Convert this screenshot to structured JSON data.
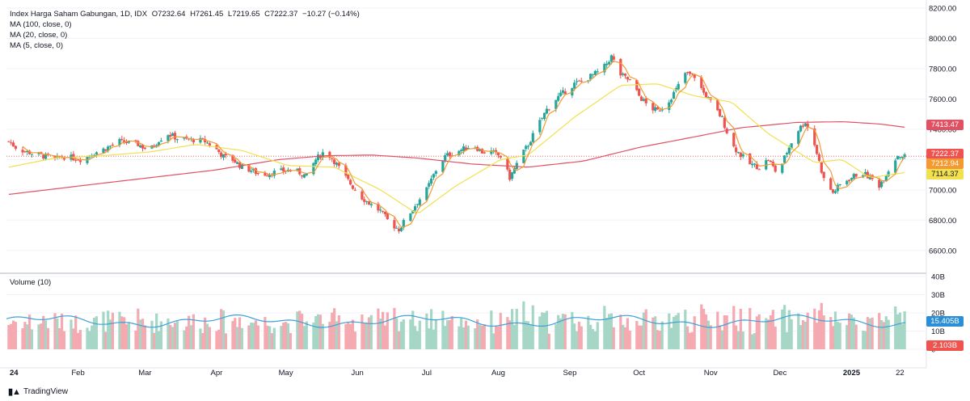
{
  "legend": {
    "symbol": "Index Harga Saham Gabungan, 1D, IDX",
    "open": "O7232.64",
    "high": "H7261.45",
    "low": "L7219.65",
    "close": "C7222.37",
    "change": "−10.27 (−0.14%)",
    "ma100": "MA (100, close, 0)",
    "ma20": "MA (20, close, 0)",
    "ma5": "MA (5, close, 0)"
  },
  "volume_title": "Volume (10)",
  "brand": "TradingView",
  "price_tags": {
    "ma100": "7413.47",
    "close": "7222.37",
    "ma5": "7212.94",
    "ma20": "7114.37",
    "volume_ma": "15.405B",
    "volume": "2.103B"
  },
  "colors": {
    "up": "#26a69a",
    "down": "#ef5350",
    "vol_up": "#a5d6c6",
    "vol_down": "#f5a9b0",
    "ma100": "#e05263",
    "ma20": "#f3e04e",
    "ma5": "#f39a32",
    "vol_ma": "#3fa1d8"
  },
  "chart_data": {
    "type": "candlestick",
    "title": "Index Harga Saham Gabungan, 1D, IDX",
    "price_axis": {
      "ylim": [
        6460,
        8200
      ],
      "ticks": [
        "8200.00",
        "8000.00",
        "7800.00",
        "7600.00",
        "7400.00",
        "7200.00",
        "7000.00",
        "6800.00",
        "6600.00"
      ]
    },
    "volume_axis": {
      "ylim": [
        0,
        40
      ],
      "unit": "B",
      "ticks": [
        "40B",
        "30B",
        "20B",
        "10B",
        "0"
      ]
    },
    "x_labels": [
      "24",
      "Feb",
      "Mar",
      "Apr",
      "May",
      "Jun",
      "Jul",
      "Aug",
      "Sep",
      "Oct",
      "Nov",
      "Dec",
      "2025",
      "22"
    ],
    "price_path": [
      [
        "2024-01-02",
        7320
      ],
      [
        "2024-01-06",
        7270
      ],
      [
        "2024-01-10",
        7250
      ],
      [
        "2024-01-14",
        7235
      ],
      [
        "2024-01-18",
        7220
      ],
      [
        "2024-01-22",
        7200
      ],
      [
        "2024-01-26",
        7220
      ],
      [
        "2024-01-30",
        7210
      ],
      [
        "2024-02-03",
        7200
      ],
      [
        "2024-02-07",
        7240
      ],
      [
        "2024-02-11",
        7260
      ],
      [
        "2024-02-15",
        7290
      ],
      [
        "2024-02-19",
        7320
      ],
      [
        "2024-02-23",
        7310
      ],
      [
        "2024-02-27",
        7300
      ],
      [
        "2024-03-03",
        7260
      ],
      [
        "2024-03-07",
        7330
      ],
      [
        "2024-03-11",
        7370
      ],
      [
        "2024-03-15",
        7340
      ],
      [
        "2024-03-19",
        7330
      ],
      [
        "2024-03-23",
        7330
      ],
      [
        "2024-03-27",
        7320
      ],
      [
        "2024-03-31",
        7280
      ],
      [
        "2024-04-04",
        7220
      ],
      [
        "2024-04-08",
        7200
      ],
      [
        "2024-04-12",
        7150
      ],
      [
        "2024-04-16",
        7130
      ],
      [
        "2024-04-20",
        7100
      ],
      [
        "2024-04-24",
        7110
      ],
      [
        "2024-04-28",
        7120
      ],
      [
        "2024-05-02",
        7130
      ],
      [
        "2024-05-06",
        7120
      ],
      [
        "2024-05-10",
        7090
      ],
      [
        "2024-05-14",
        7200
      ],
      [
        "2024-05-18",
        7260
      ],
      [
        "2024-05-22",
        7190
      ],
      [
        "2024-05-26",
        7100
      ],
      [
        "2024-05-30",
        7020
      ],
      [
        "2024-06-03",
        6950
      ],
      [
        "2024-06-07",
        6900
      ],
      [
        "2024-06-11",
        6860
      ],
      [
        "2024-06-15",
        6780
      ],
      [
        "2024-06-19",
        6740
      ],
      [
        "2024-06-23",
        6830
      ],
      [
        "2024-06-27",
        6920
      ],
      [
        "2024-07-01",
        7000
      ],
      [
        "2024-07-05",
        7130
      ],
      [
        "2024-07-09",
        7220
      ],
      [
        "2024-07-13",
        7250
      ],
      [
        "2024-07-17",
        7270
      ],
      [
        "2024-07-21",
        7300
      ],
      [
        "2024-07-25",
        7250
      ],
      [
        "2024-07-29",
        7250
      ],
      [
        "2024-08-02",
        7220
      ],
      [
        "2024-08-06",
        7080
      ],
      [
        "2024-08-10",
        7200
      ],
      [
        "2024-08-14",
        7300
      ],
      [
        "2024-08-18",
        7420
      ],
      [
        "2024-08-22",
        7530
      ],
      [
        "2024-08-26",
        7600
      ],
      [
        "2024-08-30",
        7650
      ],
      [
        "2024-09-03",
        7700
      ],
      [
        "2024-09-07",
        7720
      ],
      [
        "2024-09-11",
        7760
      ],
      [
        "2024-09-15",
        7790
      ],
      [
        "2024-09-19",
        7880
      ],
      [
        "2024-09-23",
        7760
      ],
      [
        "2024-09-27",
        7720
      ],
      [
        "2024-10-01",
        7620
      ],
      [
        "2024-10-05",
        7550
      ],
      [
        "2024-10-09",
        7520
      ],
      [
        "2024-10-13",
        7570
      ],
      [
        "2024-10-17",
        7660
      ],
      [
        "2024-10-21",
        7770
      ],
      [
        "2024-10-25",
        7750
      ],
      [
        "2024-10-29",
        7640
      ],
      [
        "2024-11-02",
        7560
      ],
      [
        "2024-11-06",
        7470
      ],
      [
        "2024-11-10",
        7300
      ],
      [
        "2024-11-14",
        7230
      ],
      [
        "2024-11-18",
        7170
      ],
      [
        "2024-11-22",
        7150
      ],
      [
        "2024-11-26",
        7200
      ],
      [
        "2024-11-30",
        7100
      ],
      [
        "2024-12-04",
        7250
      ],
      [
        "2024-12-08",
        7380
      ],
      [
        "2024-12-12",
        7450
      ],
      [
        "2024-12-16",
        7300
      ],
      [
        "2024-12-20",
        7070
      ],
      [
        "2024-12-24",
        6980
      ],
      [
        "2024-12-28",
        7050
      ],
      [
        "2025-01-01",
        7080
      ],
      [
        "2025-01-05",
        7120
      ],
      [
        "2025-01-09",
        7080
      ],
      [
        "2025-01-13",
        7030
      ],
      [
        "2025-01-17",
        7130
      ],
      [
        "2025-01-21",
        7230
      ],
      [
        "2025-01-24",
        7222.37
      ]
    ],
    "ma100_path": [
      [
        "2024-01-02",
        6970
      ],
      [
        "2024-02-15",
        7050
      ],
      [
        "2024-03-31",
        7130
      ],
      [
        "2024-04-28",
        7200
      ],
      [
        "2024-05-18",
        7225
      ],
      [
        "2024-06-07",
        7230
      ],
      [
        "2024-06-27",
        7210
      ],
      [
        "2024-07-21",
        7170
      ],
      [
        "2024-08-14",
        7150
      ],
      [
        "2024-09-07",
        7190
      ],
      [
        "2024-10-01",
        7280
      ],
      [
        "2024-10-25",
        7350
      ],
      [
        "2024-11-14",
        7410
      ],
      [
        "2024-12-08",
        7445
      ],
      [
        "2024-12-28",
        7450
      ],
      [
        "2025-01-13",
        7435
      ],
      [
        "2025-01-24",
        7413.47
      ]
    ],
    "ma20_path": [
      [
        "2024-01-02",
        7150
      ],
      [
        "2024-01-22",
        7210
      ],
      [
        "2024-02-11",
        7225
      ],
      [
        "2024-03-03",
        7250
      ],
      [
        "2024-03-23",
        7300
      ],
      [
        "2024-04-12",
        7260
      ],
      [
        "2024-05-02",
        7160
      ],
      [
        "2024-05-22",
        7150
      ],
      [
        "2024-06-11",
        7000
      ],
      [
        "2024-06-27",
        6840
      ],
      [
        "2024-07-13",
        7020
      ],
      [
        "2024-08-02",
        7200
      ],
      [
        "2024-08-14",
        7230
      ],
      [
        "2024-09-03",
        7480
      ],
      [
        "2024-09-23",
        7690
      ],
      [
        "2024-10-09",
        7700
      ],
      [
        "2024-10-25",
        7620
      ],
      [
        "2024-11-10",
        7580
      ],
      [
        "2024-11-26",
        7370
      ],
      [
        "2024-12-16",
        7180
      ],
      [
        "2024-12-28",
        7200
      ],
      [
        "2025-01-09",
        7080
      ],
      [
        "2025-01-24",
        7114.37
      ]
    ],
    "volume_ma_value": 15.405,
    "last_volume_value": 2.103
  }
}
